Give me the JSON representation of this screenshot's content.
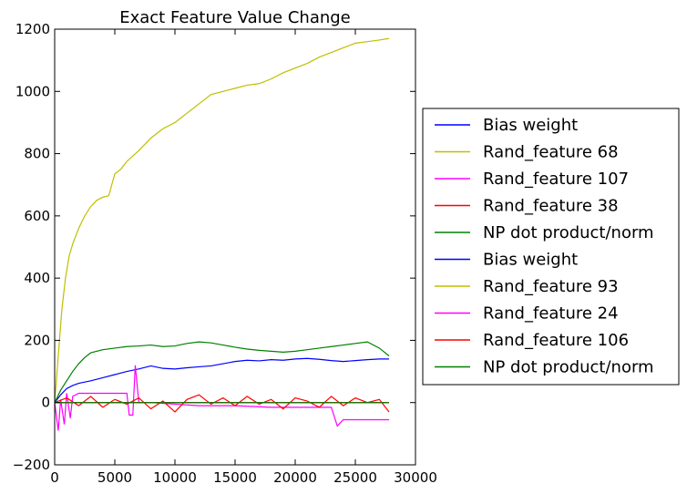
{
  "chart_data": {
    "type": "line",
    "title": "Exact Feature Value Change",
    "xlabel": "",
    "ylabel": "",
    "xlim": [
      0,
      30000
    ],
    "ylim": [
      -200,
      1200
    ],
    "xticks": [
      0,
      5000,
      10000,
      15000,
      20000,
      25000,
      30000
    ],
    "yticks": [
      -200,
      0,
      200,
      400,
      600,
      800,
      1000,
      1200
    ],
    "xtick_labels": [
      "0",
      "5000",
      "10000",
      "15000",
      "20000",
      "25000",
      "30000"
    ],
    "ytick_labels": [
      "−200",
      "0",
      "200",
      "400",
      "600",
      "800",
      "1000",
      "1200"
    ],
    "grid": false,
    "legend_position": "right, outside plot",
    "series": [
      {
        "name": "Bias weight",
        "color": "#0000ff",
        "x": [
          0,
          500,
          1000,
          1500,
          2000,
          3000,
          4000,
          5000,
          6000,
          7000,
          8000,
          9000,
          10000,
          11000,
          12000,
          13000,
          14000,
          15000,
          16000,
          17000,
          18000,
          19000,
          20000,
          21000,
          22000,
          23000,
          24000,
          25000,
          26000,
          27000,
          27800
        ],
        "y": [
          0,
          25,
          45,
          55,
          62,
          70,
          80,
          90,
          100,
          108,
          118,
          110,
          108,
          112,
          115,
          118,
          125,
          132,
          136,
          134,
          138,
          136,
          140,
          142,
          139,
          135,
          132,
          135,
          138,
          140,
          140
        ]
      },
      {
        "name": "Rand_feature 68",
        "color": "#bfbf00",
        "x": [
          0,
          300,
          600,
          900,
          1200,
          1500,
          2000,
          2500,
          3000,
          3500,
          4000,
          4500,
          5000,
          5500,
          6000,
          7000,
          8000,
          9000,
          10000,
          11000,
          12000,
          13000,
          14000,
          15000,
          16000,
          17000,
          18000,
          19000,
          20000,
          21000,
          22000,
          23000,
          24000,
          25000,
          26000,
          27000,
          27800
        ],
        "y": [
          0,
          150,
          300,
          400,
          470,
          510,
          560,
          600,
          630,
          650,
          660,
          665,
          735,
          750,
          775,
          810,
          850,
          880,
          900,
          930,
          960,
          990,
          1000,
          1010,
          1020,
          1025,
          1040,
          1060,
          1075,
          1090,
          1110,
          1125,
          1140,
          1155,
          1160,
          1165,
          1170
        ]
      },
      {
        "name": "Rand_feature 107",
        "color": "#ff00ff",
        "x": [
          0,
          300,
          500,
          800,
          1000,
          1300,
          1500,
          2000,
          3000,
          4000,
          5000,
          6000,
          6200,
          6500,
          6700,
          7000,
          8000,
          10000,
          12000,
          15000,
          18000,
          20000,
          22000,
          23000,
          23500,
          24000,
          26000,
          27800
        ],
        "y": [
          0,
          -90,
          10,
          -70,
          30,
          -50,
          20,
          30,
          30,
          30,
          30,
          30,
          -40,
          -40,
          120,
          0,
          0,
          -5,
          -10,
          -10,
          -15,
          -15,
          -15,
          -15,
          -75,
          -55,
          -55,
          -55
        ]
      },
      {
        "name": "Rand_feature 38",
        "color": "#ff0000",
        "x": [
          0,
          1000,
          2000,
          3000,
          4000,
          5000,
          6000,
          7000,
          8000,
          9000,
          10000,
          11000,
          12000,
          13000,
          14000,
          15000,
          16000,
          17000,
          18000,
          19000,
          20000,
          21000,
          22000,
          23000,
          24000,
          25000,
          26000,
          27000,
          27800
        ],
        "y": [
          0,
          15,
          -10,
          20,
          -15,
          10,
          -5,
          15,
          -20,
          5,
          -30,
          10,
          25,
          -5,
          15,
          -10,
          20,
          -5,
          10,
          -20,
          15,
          5,
          -15,
          20,
          -10,
          15,
          0,
          10,
          -30
        ]
      },
      {
        "name": "NP dot product/norm",
        "color": "#008000",
        "x": [
          0,
          500,
          1000,
          1500,
          2000,
          2500,
          3000,
          4000,
          5000,
          6000,
          7000,
          8000,
          9000,
          10000,
          11000,
          12000,
          13000,
          14000,
          15000,
          16000,
          17000,
          18000,
          19000,
          20000,
          21000,
          22000,
          23000,
          24000,
          25000,
          26000,
          27000,
          27800
        ],
        "y": [
          0,
          40,
          70,
          100,
          125,
          145,
          160,
          170,
          175,
          180,
          182,
          185,
          180,
          182,
          190,
          195,
          192,
          185,
          178,
          172,
          168,
          165,
          162,
          165,
          170,
          175,
          180,
          185,
          190,
          195,
          175,
          150
        ]
      },
      {
        "name": "Bias weight",
        "color": "#0000ff",
        "x": [
          0,
          27800
        ],
        "y": [
          0,
          0
        ]
      },
      {
        "name": "Rand_feature 93",
        "color": "#bfbf00",
        "x": [
          0,
          27800
        ],
        "y": [
          0,
          0
        ]
      },
      {
        "name": "Rand_feature 24",
        "color": "#ff00ff",
        "x": [
          0,
          27800
        ],
        "y": [
          0,
          0
        ]
      },
      {
        "name": "Rand_feature 106",
        "color": "#ff0000",
        "x": [
          0,
          27800
        ],
        "y": [
          0,
          0
        ]
      },
      {
        "name": "NP dot product/norm",
        "color": "#008000",
        "x": [
          0,
          27800
        ],
        "y": [
          0,
          0
        ]
      }
    ]
  }
}
